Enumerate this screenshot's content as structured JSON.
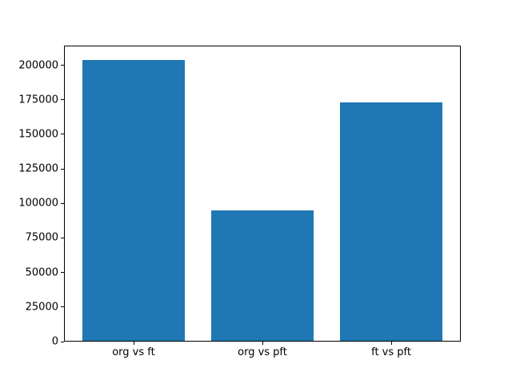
{
  "chart_data": {
    "type": "bar",
    "title": "",
    "xlabel": "",
    "ylabel": "",
    "categories": [
      "org vs ft",
      "org vs pft",
      "ft vs pft"
    ],
    "values": [
      204000,
      95000,
      173000
    ],
    "yticks": [
      0,
      25000,
      50000,
      75000,
      100000,
      125000,
      150000,
      175000,
      200000
    ],
    "ylim": [
      0,
      214200
    ],
    "xlim": [
      -0.54,
      2.54
    ],
    "bar_width": 0.8,
    "bar_color": "#1f77b4",
    "background_color": "#ffffff",
    "spine_color": "#000000",
    "grid": false,
    "legend": false
  }
}
